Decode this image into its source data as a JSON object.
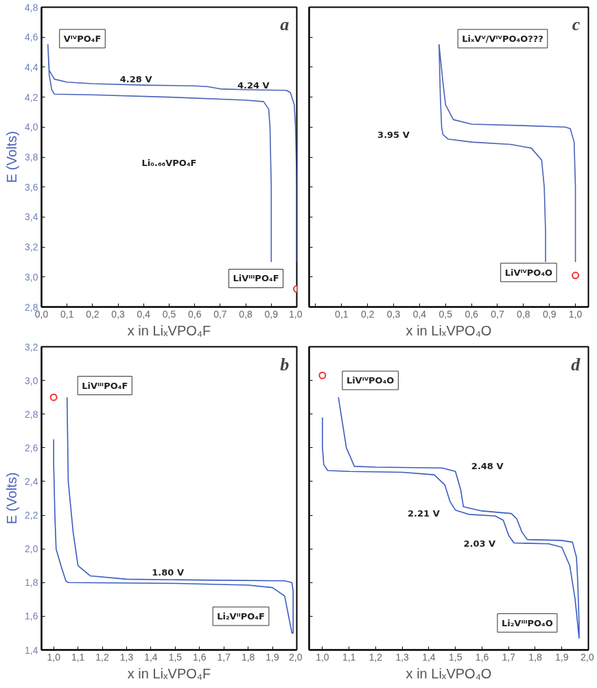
{
  "chart_data": [
    {
      "type": "line",
      "title": "a",
      "xlabel": "x in LiₓVPO₄F",
      "ylabel": "E (Volts)",
      "grid": false,
      "xlim": [
        0,
        1.0
      ],
      "ylim": [
        2.8,
        4.8
      ],
      "xticks": [
        {
          "value": 0,
          "label": "0,0"
        },
        {
          "value": 0.1,
          "label": "0,1"
        },
        {
          "value": 0.2,
          "label": "0,2"
        },
        {
          "value": 0.3,
          "label": "0,3"
        },
        {
          "value": 0.4,
          "label": "0,4"
        },
        {
          "value": 0.5,
          "label": "0,5"
        },
        {
          "value": 0.6,
          "label": "0,6"
        },
        {
          "value": 0.7,
          "label": "0,7"
        },
        {
          "value": 0.8,
          "label": "0,8"
        },
        {
          "value": 0.9,
          "label": "0,9"
        },
        {
          "value": 1.0,
          "label": "1,0"
        }
      ],
      "yticks": [
        {
          "value": 2.8,
          "label": "2,8"
        },
        {
          "value": 3.0,
          "label": "3,0"
        },
        {
          "value": 3.2,
          "label": "3,2"
        },
        {
          "value": 3.4,
          "label": "3,4"
        },
        {
          "value": 3.6,
          "label": "3,6"
        },
        {
          "value": 3.8,
          "label": "3,8"
        },
        {
          "value": 4.0,
          "label": "4,0"
        },
        {
          "value": 4.2,
          "label": "4,2"
        },
        {
          "value": 4.4,
          "label": "4,4"
        },
        {
          "value": 4.6,
          "label": "4,6"
        },
        {
          "value": 4.8,
          "label": "4,8"
        }
      ],
      "series": [
        {
          "color": "#4a63b8",
          "x": [
            1.0,
            1.0,
            0.995,
            0.99,
            0.975,
            0.96,
            0.8,
            0.7,
            0.65,
            0.6,
            0.4,
            0.2,
            0.1,
            0.05,
            0.03,
            0.025,
            0.03,
            0.04,
            0.05,
            0.2,
            0.5,
            0.8,
            0.87,
            0.89,
            0.895,
            0.9,
            0.9
          ],
          "values": [
            3.1,
            3.6,
            4.0,
            4.15,
            4.23,
            4.245,
            4.25,
            4.255,
            4.27,
            4.275,
            4.28,
            4.29,
            4.3,
            4.32,
            4.38,
            4.55,
            4.35,
            4.25,
            4.22,
            4.215,
            4.2,
            4.18,
            4.17,
            4.12,
            4.0,
            3.6,
            3.1
          ]
        },
        {
          "type": "scatter",
          "marker": "circle",
          "color": "#ee3333",
          "x": [
            1.0
          ],
          "values": [
            2.92
          ]
        }
      ],
      "annotations": [
        "VᴵⱽPO₄F",
        "4.28 V",
        "4.24 V",
        "Li₀.₆₆VPO₄F",
        "LiVᴵᴵᴵPO₄F"
      ]
    },
    {
      "type": "line",
      "title": "c",
      "xlabel": "x in LiₓVPO₄O",
      "grid": false,
      "tick_labels": "x",
      "xlim": [
        -0.025,
        1.05
      ],
      "ylim": [
        2.8,
        4.8
      ],
      "xticks": [
        {
          "value": 0,
          "label": null
        },
        {
          "value": 0.1,
          "label": "0,1"
        },
        {
          "value": 0.2,
          "label": "0,2"
        },
        {
          "value": 0.3,
          "label": "0,3"
        },
        {
          "value": 0.4,
          "label": "0,4"
        },
        {
          "value": 0.5,
          "label": "0,5"
        },
        {
          "value": 0.6,
          "label": "0,6"
        },
        {
          "value": 0.7,
          "label": "0,7"
        },
        {
          "value": 0.8,
          "label": "0,8"
        },
        {
          "value": 0.9,
          "label": "0,9"
        },
        {
          "value": 1.0,
          "label": "1,0"
        }
      ],
      "yticks": [
        2.8,
        3.0,
        3.2,
        3.4,
        3.6,
        3.8,
        4.0,
        4.2,
        4.4,
        4.6,
        4.8
      ],
      "series": [
        {
          "color": "#4a63b8",
          "x": [
            1.0,
            1.0,
            0.995,
            0.98,
            0.96,
            0.8,
            0.6,
            0.53,
            0.5,
            0.49,
            0.475,
            0.48,
            0.485,
            0.49,
            0.51,
            0.6,
            0.75,
            0.83,
            0.87,
            0.88,
            0.885,
            0.885
          ],
          "values": [
            3.1,
            3.6,
            3.9,
            3.99,
            4.0,
            4.01,
            4.02,
            4.05,
            4.15,
            4.3,
            4.55,
            4.2,
            4.0,
            3.95,
            3.92,
            3.9,
            3.885,
            3.86,
            3.78,
            3.6,
            3.3,
            3.1
          ]
        },
        {
          "type": "scatter",
          "marker": "circle",
          "color": "#ee3333",
          "x": [
            1.0
          ],
          "values": [
            3.01
          ]
        }
      ],
      "annotations": [
        "LiₓVⱽ/VᴵⱽPO₄O???",
        "3.95 V",
        "LiVᴵⱽPO₄O"
      ]
    },
    {
      "type": "line",
      "title": "b",
      "xlabel": "x in LiₓVPO₄F",
      "ylabel": "E (Volts)",
      "grid": false,
      "xlim": [
        0.95,
        2.0
      ],
      "ylim": [
        1.4,
        3.2
      ],
      "xticks": [
        {
          "value": 1.0,
          "label": "1,0"
        },
        {
          "value": 1.1,
          "label": "1,1"
        },
        {
          "value": 1.2,
          "label": "1,2"
        },
        {
          "value": 1.3,
          "label": "1,3"
        },
        {
          "value": 1.4,
          "label": "1,4"
        },
        {
          "value": 1.5,
          "label": "1,5"
        },
        {
          "value": 1.6,
          "label": "1,6"
        },
        {
          "value": 1.7,
          "label": "1,7"
        },
        {
          "value": 1.8,
          "label": "1,8"
        },
        {
          "value": 1.9,
          "label": "1,9"
        },
        {
          "value": 2.0,
          "label": "2,0"
        }
      ],
      "yticks": [
        {
          "value": 1.4,
          "label": "1,4"
        },
        {
          "value": 1.6,
          "label": "1,6"
        },
        {
          "value": 1.8,
          "label": "1,8"
        },
        {
          "value": 2.0,
          "label": "2,0"
        },
        {
          "value": 2.2,
          "label": "2,2"
        },
        {
          "value": 2.4,
          "label": "2,4"
        },
        {
          "value": 2.6,
          "label": "2,6"
        },
        {
          "value": 2.8,
          "label": "2,8"
        },
        {
          "value": 3.0,
          "label": "3,0"
        },
        {
          "value": 3.2,
          "label": "3,2"
        }
      ],
      "series": [
        {
          "color": "#3a5cc0",
          "x": [
            1.0,
            1.0,
            1.005,
            1.01,
            1.03,
            1.05,
            1.06,
            1.5,
            1.8,
            1.9,
            1.95,
            1.98,
            1.985,
            1.985,
            1.98,
            1.95,
            1.6,
            1.3,
            1.15,
            1.1,
            1.08,
            1.06,
            1.055
          ],
          "values": [
            2.65,
            2.5,
            2.2,
            2.0,
            1.9,
            1.81,
            1.8,
            1.795,
            1.785,
            1.77,
            1.72,
            1.5,
            1.5,
            1.75,
            1.8,
            1.81,
            1.815,
            1.82,
            1.84,
            1.9,
            2.1,
            2.4,
            2.9
          ]
        },
        {
          "type": "scatter",
          "marker": "circle",
          "color": "#ee3333",
          "x": [
            1.0
          ],
          "values": [
            2.9
          ]
        }
      ],
      "annotations": [
        "LiVᴵᴵᴵPO₄F",
        "1.80 V",
        "Li₂VᴵᴵPO₄F"
      ]
    },
    {
      "type": "line",
      "title": "d",
      "xlabel": "x in LiₓVPO₄O",
      "grid": false,
      "tick_labels": "x",
      "xlim": [
        0.95,
        2.0
      ],
      "ylim": [
        1.4,
        3.2
      ],
      "xticks": [
        {
          "value": 1.0,
          "label": "1,0"
        },
        {
          "value": 1.1,
          "label": "1,1"
        },
        {
          "value": 1.2,
          "label": "1,2"
        },
        {
          "value": 1.3,
          "label": "1,3"
        },
        {
          "value": 1.4,
          "label": "1,4"
        },
        {
          "value": 1.5,
          "label": "1,5"
        },
        {
          "value": 1.6,
          "label": "1,6"
        },
        {
          "value": 1.7,
          "label": "1,7"
        },
        {
          "value": 1.8,
          "label": "1,8"
        },
        {
          "value": 1.9,
          "label": "1,9"
        },
        {
          "value": 2.0,
          "label": "2,0"
        }
      ],
      "yticks": [
        1.4,
        1.6,
        1.8,
        2.0,
        2.2,
        2.4,
        2.6,
        2.8,
        3.0,
        3.2
      ],
      "series": [
        {
          "color": "#3a5cc0",
          "x": [
            1.0,
            1.0,
            1.005,
            1.02,
            1.1,
            1.3,
            1.42,
            1.46,
            1.48,
            1.5,
            1.55,
            1.65,
            1.68,
            1.7,
            1.72,
            1.85,
            1.9,
            1.93,
            1.95,
            1.965,
            1.965,
            1.96,
            1.955,
            1.94,
            1.9,
            1.77,
            1.75,
            1.73,
            1.71,
            1.6,
            1.53,
            1.52,
            1.5,
            1.45,
            1.2,
            1.12,
            1.09,
            1.06
          ],
          "values": [
            2.78,
            2.6,
            2.5,
            2.465,
            2.46,
            2.455,
            2.44,
            2.38,
            2.28,
            2.23,
            2.205,
            2.195,
            2.17,
            2.08,
            2.035,
            2.03,
            2.01,
            1.9,
            1.7,
            1.47,
            1.55,
            1.8,
            1.95,
            2.04,
            2.05,
            2.055,
            2.1,
            2.18,
            2.21,
            2.225,
            2.25,
            2.35,
            2.46,
            2.48,
            2.485,
            2.49,
            2.6,
            2.9
          ]
        },
        {
          "type": "scatter",
          "marker": "circle",
          "color": "#ee3333",
          "x": [
            1.0
          ],
          "values": [
            3.03
          ]
        }
      ],
      "annotations": [
        "LiVᴵⱽPO₄O",
        "2.48 V",
        "2.21 V",
        "2.03 V",
        "Li₂VᴵᴵᴵPO₄O"
      ]
    }
  ]
}
